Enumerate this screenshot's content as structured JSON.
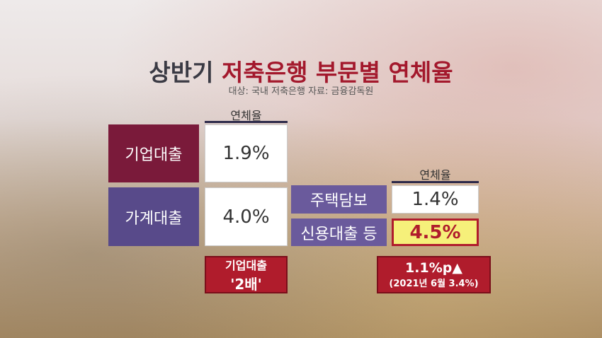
{
  "header": {
    "title_prefix": "상반기",
    "title_main": "저축은행 부문별 연체율",
    "source": "대상: 국내 저축은행 자료: 금융감독원"
  },
  "left_table": {
    "header": "연체율",
    "rows": [
      [
        "기업대출",
        "1.9%"
      ],
      [
        "가계대출",
        "4.0%"
      ]
    ],
    "note": [
      "기업대출",
      "'2배'"
    ]
  },
  "right_table": {
    "header": "연체율",
    "rows": [
      [
        "주택담보",
        "1.4%"
      ],
      [
        "신용대출 등",
        "4.5%"
      ]
    ],
    "note": [
      "1.1%p▲",
      "(2021년 6월 3.4%)"
    ]
  }
}
